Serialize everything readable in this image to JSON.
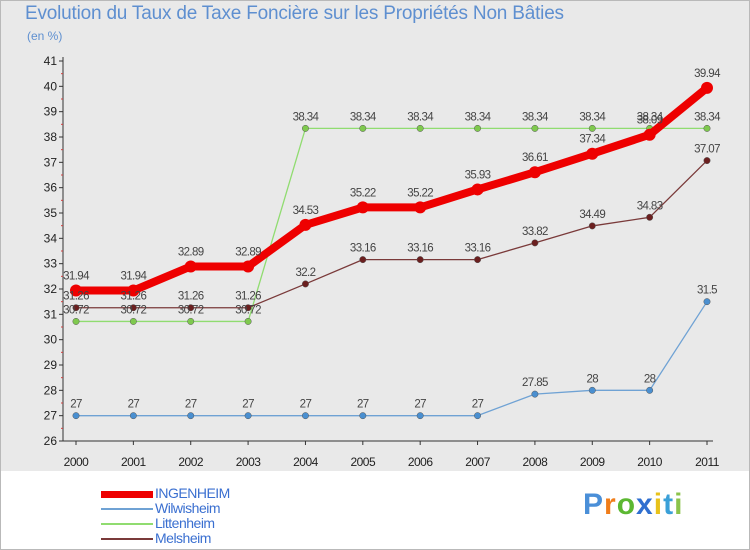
{
  "title": "Evolution du Taux de Taxe Foncière sur les Propriétés Non Bâties",
  "unit_label": "(en %)",
  "colors": {
    "title": "#5e8fd0",
    "axis": "#333333",
    "tick_text": "#222222"
  },
  "chart_data": {
    "type": "line",
    "x": [
      2000,
      2001,
      2002,
      2003,
      2004,
      2005,
      2006,
      2007,
      2008,
      2009,
      2010,
      2011
    ],
    "ylim": [
      26,
      41
    ],
    "yticks": [
      26,
      27,
      28,
      29,
      30,
      31,
      32,
      33,
      34,
      35,
      36,
      37,
      38,
      39,
      40,
      41
    ],
    "grid": false,
    "legend_position": "bottom-left",
    "series": [
      {
        "name": "INGENHEIM",
        "color": "#ee0000",
        "marker": "#ee0000",
        "values": [
          31.94,
          31.94,
          32.89,
          32.89,
          34.53,
          35.22,
          35.22,
          35.93,
          36.61,
          37.34,
          38.09,
          39.94
        ],
        "labels": [
          "31.94",
          "31.94",
          "32.89",
          "32.89",
          "34.53",
          "35.22",
          "35.22",
          "35.93",
          "36.61",
          "37.34",
          "38.09",
          "39.94"
        ]
      },
      {
        "name": "Wilwisheim",
        "color": "#6fa2d4",
        "marker": "#4a8fd0",
        "values": [
          27,
          27,
          27,
          27,
          27,
          27,
          27,
          27,
          27.85,
          28,
          28,
          31.5
        ],
        "labels": [
          "27",
          "27",
          "27",
          "27",
          "27",
          "27",
          "27",
          "27",
          "27.85",
          "28",
          "28",
          "31.5"
        ]
      },
      {
        "name": "Littenheim",
        "color": "#90dc70",
        "marker": "#7fc94e",
        "values": [
          30.72,
          30.72,
          30.72,
          30.72,
          38.34,
          38.34,
          38.34,
          38.34,
          38.34,
          38.34,
          38.34,
          38.34
        ],
        "labels": [
          "30.72",
          "30.72",
          "30.72",
          "30.72",
          "38.34",
          "38.34",
          "38.34",
          "38.34",
          "38.34",
          "38.34",
          "38.34",
          "38.34"
        ]
      },
      {
        "name": "Melsheim",
        "color": "#7a3a3a",
        "marker": "#6b1f1f",
        "values": [
          31.26,
          31.26,
          31.26,
          31.26,
          32.2,
          33.16,
          33.16,
          33.16,
          33.82,
          34.49,
          34.83,
          37.07
        ],
        "labels": [
          "31.26",
          "31.26",
          "31.26",
          "31.26",
          "32.2",
          "33.16",
          "33.16",
          "33.16",
          "33.82",
          "34.49",
          "34.83",
          "37.07"
        ]
      }
    ]
  },
  "logo": {
    "letters": [
      "P",
      "r",
      "o",
      "x",
      "i",
      "t",
      "i"
    ],
    "colors": [
      "#4a8fd8",
      "#f07d1a",
      "#5cb832",
      "#2f6fd0",
      "#e8c21a",
      "#3aa0d8",
      "#8bc34a"
    ]
  }
}
